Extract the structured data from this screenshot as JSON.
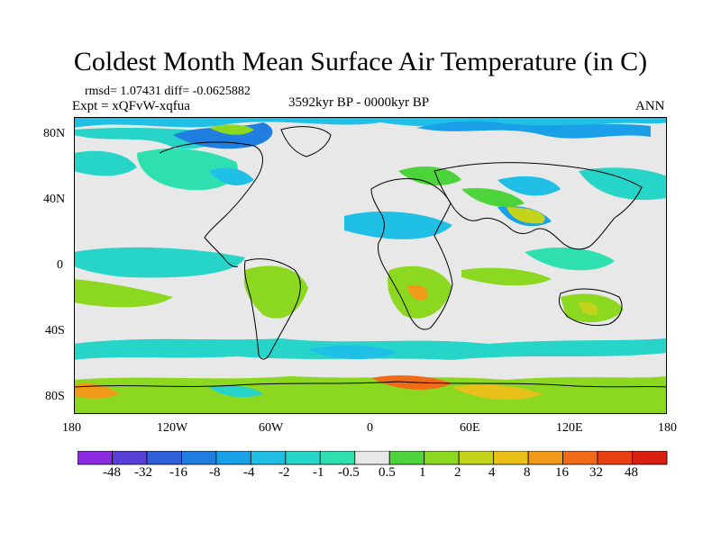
{
  "title": "Coldest Month Mean Surface Air Temperature (in C)",
  "stats": "rmsd= 1.07431 diff= -0.0625882",
  "experiment": "Expt = xQFvW-xqfua",
  "period": "3592kyr BP - 0000kyr BP",
  "season": "ANN",
  "lat_labels": [
    "80N",
    "40N",
    "0",
    "40S",
    "80S"
  ],
  "lon_labels": [
    "180",
    "120W",
    "60W",
    "0",
    "60E",
    "120E",
    "180"
  ],
  "colorbar": {
    "labels": [
      "-48",
      "-32",
      "-16",
      "-8",
      "-4",
      "-2",
      "-1",
      "-0.5",
      "0.5",
      "1",
      "2",
      "4",
      "8",
      "16",
      "32",
      "48"
    ],
    "colors": [
      "#8a2be2",
      "#5a3fd6",
      "#2e5fd8",
      "#1f7ee0",
      "#1aa0e8",
      "#20bfe6",
      "#26d4c8",
      "#2ee0b0",
      "#e8e8e8",
      "#4cd43a",
      "#8cd820",
      "#c4d41c",
      "#e8c018",
      "#f09a18",
      "#f06a18",
      "#e84010",
      "#d82010"
    ]
  },
  "colors": {
    "land_outline": "#000000",
    "neutral": "#e8e8e8"
  }
}
